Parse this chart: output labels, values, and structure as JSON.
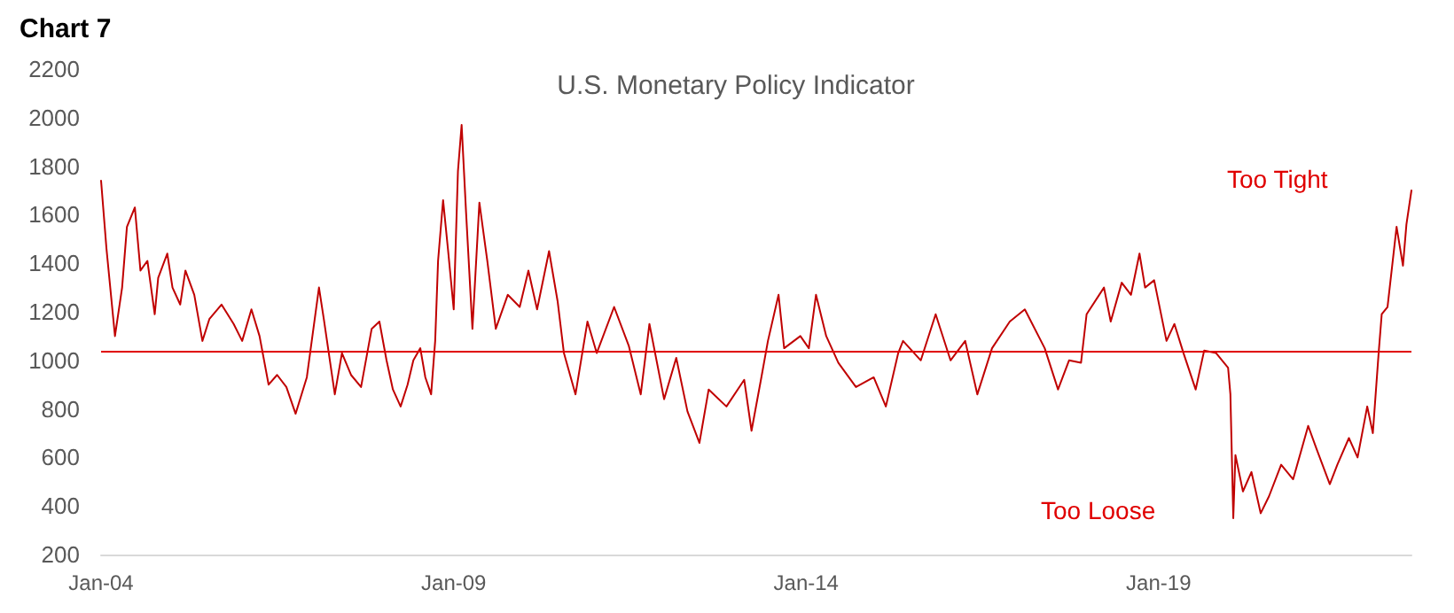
{
  "chart_data": {
    "type": "line",
    "title": "Chart 7",
    "subtitle": "U.S. Monetary Policy Indicator",
    "x": [
      "2004-01-01",
      "2004-01-29",
      "2004-03-13",
      "2004-04-19",
      "2004-05-14",
      "2004-06-24",
      "2004-07-23",
      "2004-08-28",
      "2004-10-05",
      "2004-10-23",
      "2004-12-09",
      "2005-01-05",
      "2005-02-14",
      "2005-03-13",
      "2005-04-28",
      "2005-06-09",
      "2005-07-15",
      "2005-09-16",
      "2005-11-18",
      "2006-01-01",
      "2006-02-18",
      "2006-04-01",
      "2006-05-18",
      "2006-07-01",
      "2006-08-18",
      "2006-10-05",
      "2006-12-02",
      "2007-02-03",
      "2007-02-28",
      "2007-04-26",
      "2007-06-02",
      "2007-07-19",
      "2007-09-09",
      "2007-11-03",
      "2007-12-13",
      "2008-01-19",
      "2008-02-21",
      "2008-04-01",
      "2008-05-07",
      "2008-06-06",
      "2008-07-12",
      "2008-08-07",
      "2008-09-06",
      "2008-09-27",
      "2008-10-12",
      "2008-11-07",
      "2008-12-02",
      "2009-01-01",
      "2009-01-23",
      "2009-02-11",
      "2009-03-06",
      "2009-04-08",
      "2009-05-14",
      "2009-06-24",
      "2009-08-07",
      "2009-10-08",
      "2009-12-09",
      "2010-01-23",
      "2010-03-09",
      "2010-05-10",
      "2010-06-24",
      "2010-07-26",
      "2010-09-24",
      "2010-11-25",
      "2011-01-12",
      "2011-04-12",
      "2011-06-27",
      "2011-08-28",
      "2011-10-12",
      "2011-12-27",
      "2012-02-28",
      "2012-04-26",
      "2012-06-27",
      "2012-08-14",
      "2012-11-14",
      "2013-02-14",
      "2013-03-24",
      "2013-05-14",
      "2013-06-17",
      "2013-08-11",
      "2013-09-09",
      "2013-12-02",
      "2014-01-15",
      "2014-02-21",
      "2014-04-15",
      "2014-06-17",
      "2014-09-16",
      "2014-12-17",
      "2015-02-18",
      "2015-04-23",
      "2015-05-18",
      "2015-08-18",
      "2015-11-03",
      "2016-01-19",
      "2016-04-04",
      "2016-06-06",
      "2016-08-21",
      "2016-11-21",
      "2017-02-07",
      "2017-05-21",
      "2017-07-29",
      "2017-09-24",
      "2017-11-25",
      "2017-12-24",
      "2018-03-24",
      "2018-04-28",
      "2018-06-24",
      "2018-08-11",
      "2018-09-24",
      "2018-10-23",
      "2018-12-09",
      "2019-02-11",
      "2019-03-24",
      "2019-05-10",
      "2019-07-12",
      "2019-08-25",
      "2019-10-26",
      "2019-12-27",
      "2020-01-08",
      "2020-01-23",
      "2020-02-03",
      "2020-03-13",
      "2020-04-26",
      "2020-06-13",
      "2020-07-26",
      "2020-09-27",
      "2020-11-28",
      "2021-02-14",
      "2021-03-27",
      "2021-06-06",
      "2021-07-15",
      "2021-09-13",
      "2021-10-28",
      "2021-12-17",
      "2022-01-15",
      "2022-02-14",
      "2022-03-02",
      "2022-04-01",
      "2022-05-18",
      "2022-06-20",
      "2022-07-08",
      "2022-08-03"
    ],
    "series": [
      {
        "color": "#c00000",
        "values": [
          1740,
          1460,
          1100,
          1300,
          1550,
          1630,
          1370,
          1410,
          1190,
          1340,
          1440,
          1300,
          1230,
          1370,
          1270,
          1080,
          1170,
          1230,
          1150,
          1080,
          1210,
          1100,
          900,
          940,
          890,
          780,
          930,
          1300,
          1170,
          860,
          1030,
          940,
          890,
          1130,
          1160,
          1000,
          880,
          810,
          900,
          1000,
          1050,
          930,
          860,
          1080,
          1410,
          1660,
          1460,
          1210,
          1780,
          1970,
          1610,
          1130,
          1650,
          1410,
          1130,
          1270,
          1220,
          1370,
          1210,
          1450,
          1240,
          1030,
          860,
          1160,
          1030,
          1220,
          1060,
          860,
          1150,
          840,
          1010,
          790,
          660,
          880,
          810,
          920,
          710,
          930,
          1080,
          1270,
          1050,
          1100,
          1050,
          1270,
          1100,
          990,
          890,
          930,
          810,
          1030,
          1080,
          1000,
          1190,
          1000,
          1080,
          860,
          1050,
          1160,
          1210,
          1050,
          880,
          1000,
          990,
          1190,
          1300,
          1160,
          1320,
          1270,
          1440,
          1300,
          1330,
          1080,
          1150,
          1030,
          880,
          1040,
          1030,
          970,
          860,
          350,
          610,
          460,
          540,
          370,
          440,
          570,
          510,
          730,
          640,
          490,
          570,
          680,
          600,
          810,
          700,
          1030,
          1190,
          1220,
          1550,
          1390,
          1560,
          1700
        ]
      }
    ],
    "xlim": [
      "2004-01-01",
      "2022-08-03"
    ],
    "xticks": [
      {
        "value": "2004-01-01",
        "label": "Jan-04"
      },
      {
        "value": "2009-01-01",
        "label": "Jan-09"
      },
      {
        "value": "2014-01-01",
        "label": "Jan-14"
      },
      {
        "value": "2019-01-01",
        "label": "Jan-19"
      }
    ],
    "ylim": [
      200,
      2200
    ],
    "yticks": [
      200,
      400,
      600,
      800,
      1000,
      1200,
      1400,
      1600,
      1800,
      2000,
      2200
    ],
    "marker": "none",
    "line_style": "solid",
    "ref_lines": [
      {
        "axis": "y",
        "value": 1040,
        "color": "#e00000",
        "line_style": "solid"
      }
    ],
    "annotations": [
      "Too Tight",
      "Too Loose"
    ]
  }
}
